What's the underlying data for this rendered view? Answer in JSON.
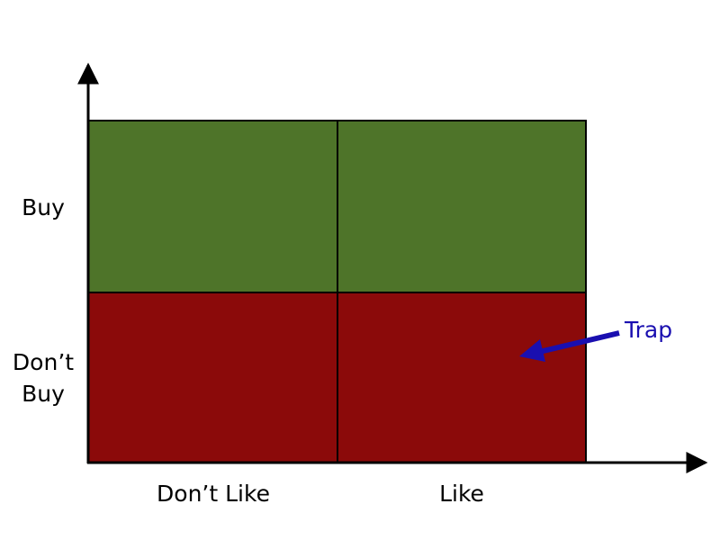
{
  "matrix": {
    "row_labels": [
      [
        "Buy"
      ],
      [
        "Don’t",
        "Buy"
      ]
    ],
    "column_labels": [
      "Don’t Like",
      "Like"
    ],
    "annotation": "Trap"
  }
}
